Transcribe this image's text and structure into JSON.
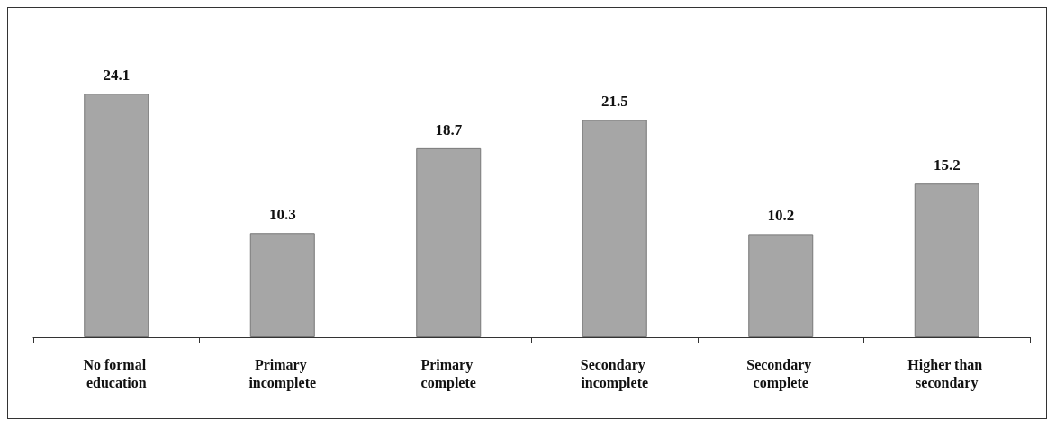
{
  "chart_data": {
    "type": "bar",
    "categories": [
      "No formal education",
      "Primary incomplete",
      "Primary complete",
      "Secondary incomplete",
      "Secondary complete",
      "Higher than secondary"
    ],
    "values": [
      24.1,
      10.3,
      18.7,
      21.5,
      10.2,
      15.2
    ],
    "color": "#a6a6a6",
    "data_labels": true
  }
}
